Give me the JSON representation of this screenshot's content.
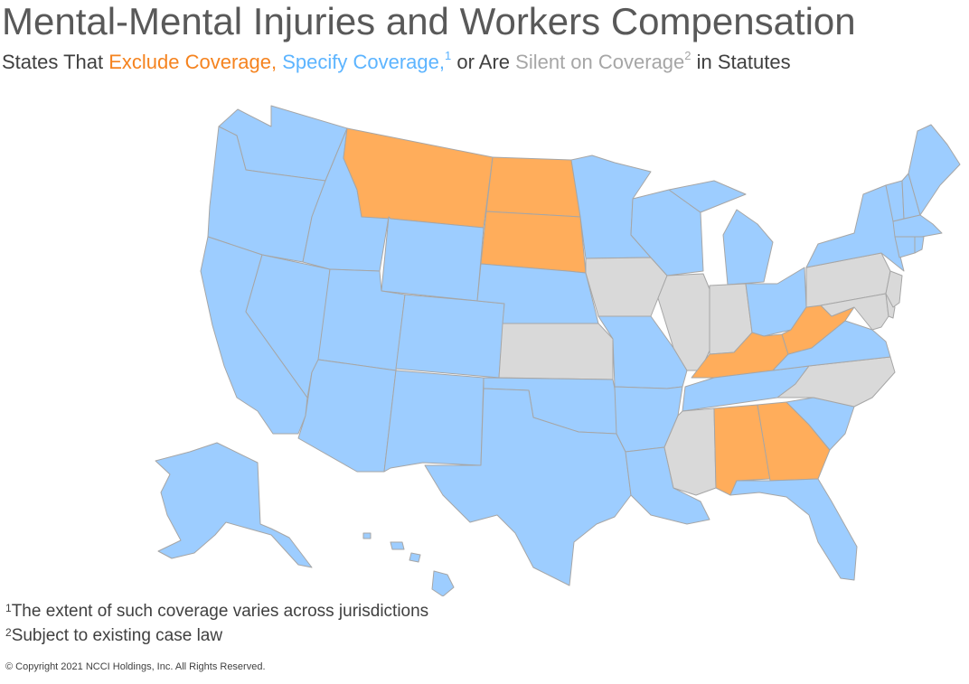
{
  "title": "Mental-Mental Injuries and Workers Compensation",
  "subtitle": {
    "prefix": "States That ",
    "exclude": "Exclude Coverage,",
    "specify": "Specify Coverage,",
    "specify_sup": "1",
    "middle": " or Are ",
    "silent": "Silent on Coverage",
    "silent_sup": "2",
    "suffix": " in Statutes"
  },
  "colors": {
    "exclude": "#ffad5b",
    "specify": "#9dcdff",
    "silent": "#d9d9d9",
    "exclude_text": "#f5831f",
    "specify_text": "#5cb4ff",
    "silent_text": "#a6a6a6",
    "border": "#a6a6a6"
  },
  "categories": {
    "exclude": [
      "MT",
      "ND",
      "SD",
      "KY",
      "WV",
      "AL",
      "GA"
    ],
    "silent": [
      "IA",
      "IL",
      "IN",
      "KS",
      "MS",
      "NC",
      "PA",
      "NJ",
      "DE",
      "MD",
      "DC"
    ],
    "specify": [
      "WA",
      "OR",
      "CA",
      "NV",
      "ID",
      "UT",
      "AZ",
      "WY",
      "CO",
      "NM",
      "NE",
      "OK",
      "TX",
      "MN",
      "MO",
      "AR",
      "LA",
      "WI",
      "MI",
      "OH",
      "TN",
      "SC",
      "FL",
      "VA",
      "NY",
      "VT",
      "NH",
      "ME",
      "MA",
      "CT",
      "RI",
      "AK",
      "HI"
    ]
  },
  "footnotes": [
    {
      "mark": "1",
      "text": "The extent of such coverage varies across jurisdictions"
    },
    {
      "mark": "2",
      "text": "Subject to existing case law"
    }
  ],
  "copyright": "© Copyright 2021 NCCI Holdings, Inc. All Rights Reserved."
}
